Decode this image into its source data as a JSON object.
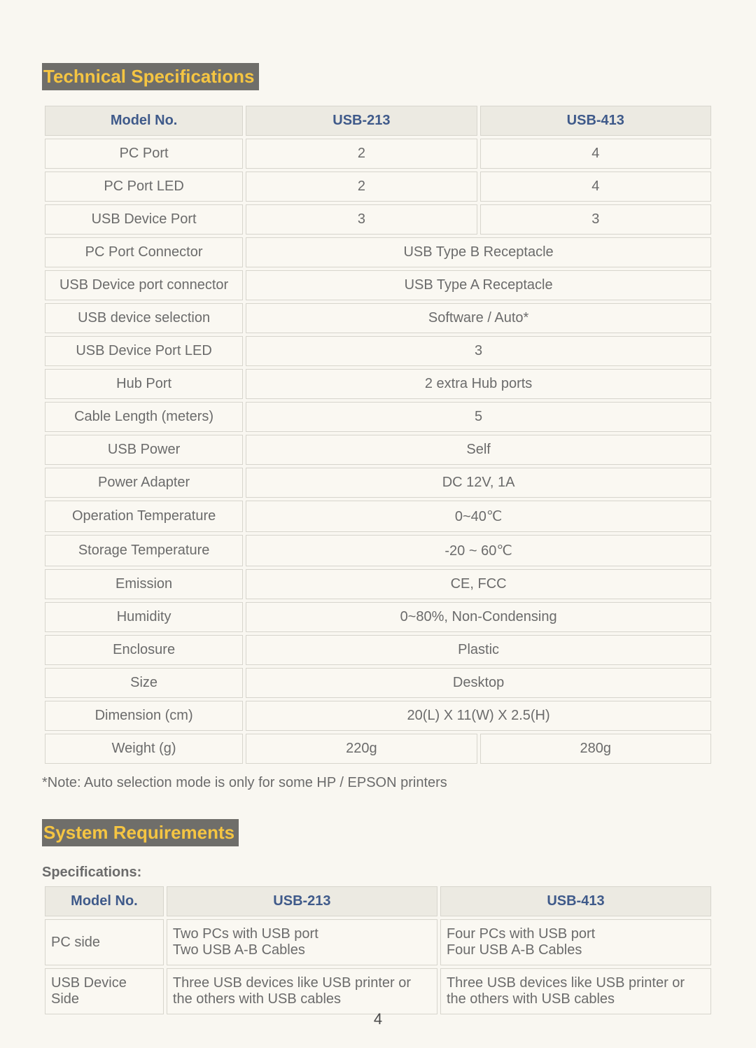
{
  "colors": {
    "page_bg": "#f9f7f1",
    "title_bg": "#6f6e6a",
    "title_fg": "#f5c542",
    "header_bg": "#eceae2",
    "header_fg": "#3f5a8a",
    "cell_border": "#d7d5cd",
    "text": "#6b6b6b"
  },
  "section1": {
    "title": "Technical Specifications",
    "headers": [
      "Model No.",
      "USB-213",
      "USB-413"
    ],
    "rows": [
      {
        "label": "PC Port",
        "span": false,
        "v1": "2",
        "v2": "4"
      },
      {
        "label": "PC Port LED",
        "span": false,
        "v1": "2",
        "v2": "4"
      },
      {
        "label": "USB Device Port",
        "span": false,
        "v1": "3",
        "v2": "3"
      },
      {
        "label": "PC Port Connector",
        "span": true,
        "v": "USB Type B Receptacle"
      },
      {
        "label": "USB Device port connector",
        "span": true,
        "v": "USB Type A Receptacle"
      },
      {
        "label": "USB device selection",
        "span": true,
        "v": "Software / Auto*"
      },
      {
        "label": "USB Device Port LED",
        "span": true,
        "v": "3"
      },
      {
        "label": "Hub Port",
        "span": true,
        "v": "2 extra Hub ports"
      },
      {
        "label": "Cable Length (meters)",
        "span": true,
        "v": "5"
      },
      {
        "label": "USB Power",
        "span": true,
        "v": "Self"
      },
      {
        "label": "Power Adapter",
        "span": true,
        "v": "DC 12V, 1A"
      },
      {
        "label": "Operation Temperature",
        "span": true,
        "v": "0~40℃"
      },
      {
        "label": "Storage Temperature",
        "span": true,
        "v": "-20 ~ 60℃"
      },
      {
        "label": "Emission",
        "span": true,
        "v": "CE, FCC"
      },
      {
        "label": "Humidity",
        "span": true,
        "v": "0~80%, Non-Condensing"
      },
      {
        "label": "Enclosure",
        "span": true,
        "v": "Plastic"
      },
      {
        "label": "Size",
        "span": true,
        "v": "Desktop"
      },
      {
        "label": "Dimension (cm)",
        "span": true,
        "v": "20(L) X 11(W) X 2.5(H)"
      },
      {
        "label": "Weight (g)",
        "span": false,
        "v1": "220g",
        "v2": "280g"
      }
    ],
    "note": "*Note: Auto selection mode is only for some HP / EPSON printers"
  },
  "section2": {
    "title": "System Requirements",
    "subhead": "Specifications:",
    "headers": [
      "Model No.",
      "USB-213",
      "USB-413"
    ],
    "rows": [
      {
        "label": "PC side",
        "v1": "Two PCs with USB port\nTwo USB A-B Cables",
        "v2": "Four PCs with USB port\nFour USB A-B Cables"
      },
      {
        "label": "USB Device Side",
        "v1": "Three USB devices like USB printer or the others with USB cables",
        "v2": "Three USB devices like USB printer or the others with USB cables"
      }
    ]
  },
  "page_number": "4"
}
